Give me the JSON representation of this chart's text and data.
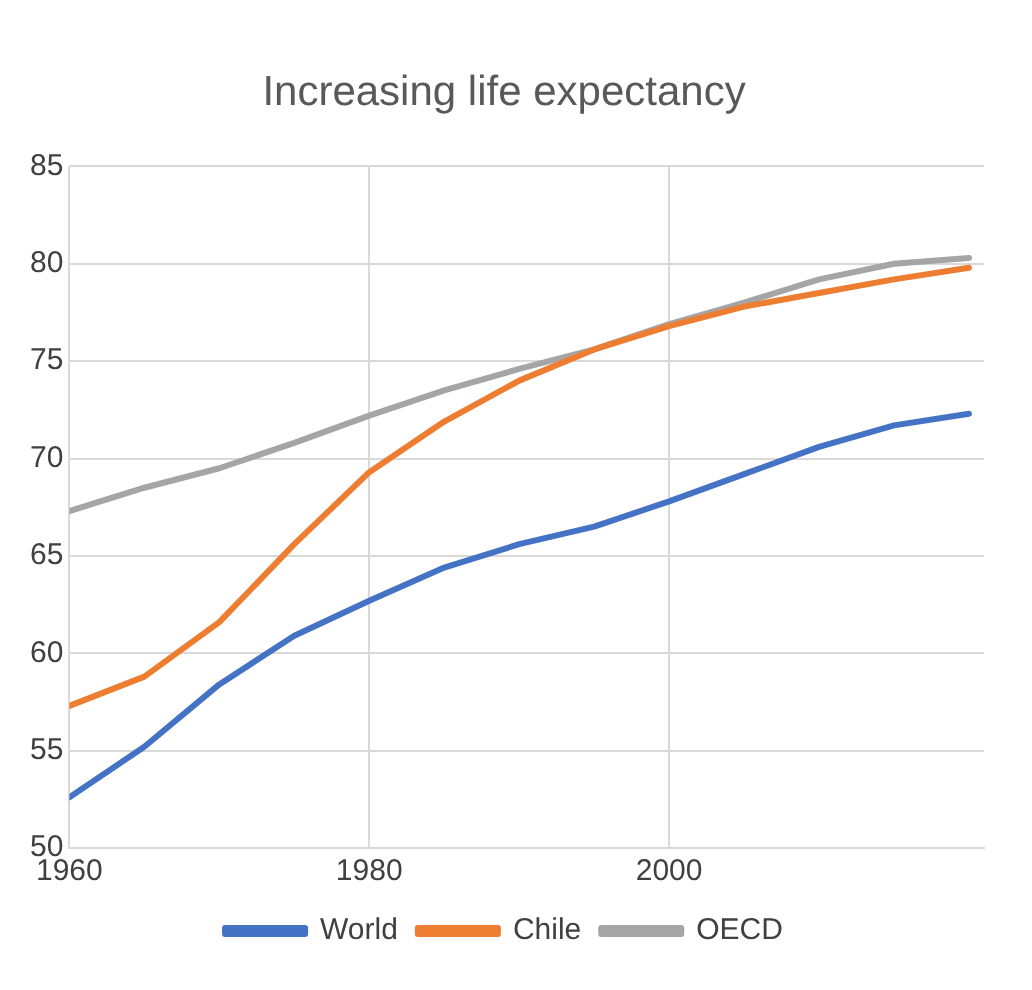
{
  "chart_data": {
    "type": "line",
    "title": "Increasing life expectancy",
    "x": [
      1960,
      1965,
      1970,
      1975,
      1980,
      1985,
      1990,
      1995,
      2000,
      2005,
      2010,
      2015,
      2020
    ],
    "series": [
      {
        "name": "World",
        "color": "#4472c4",
        "values": [
          52.6,
          55.2,
          58.4,
          60.9,
          62.7,
          64.4,
          65.6,
          66.5,
          67.8,
          69.2,
          70.6,
          71.7,
          72.3
        ]
      },
      {
        "name": "Chile",
        "color": "#ed7d31",
        "values": [
          57.3,
          58.8,
          61.6,
          65.6,
          69.3,
          71.9,
          74.0,
          75.6,
          76.8,
          77.8,
          78.5,
          79.2,
          79.8
        ]
      },
      {
        "name": "OECD",
        "color": "#a5a5a5",
        "values": [
          67.3,
          68.5,
          69.5,
          70.8,
          72.2,
          73.5,
          74.6,
          75.6,
          76.9,
          78.0,
          79.2,
          80.0,
          80.3
        ]
      }
    ],
    "xlim": [
      1960,
      2021
    ],
    "xticks": [
      1960,
      1980,
      2000
    ],
    "ylim": [
      50,
      85
    ],
    "yticks": [
      50,
      55,
      60,
      65,
      70,
      75,
      80,
      85
    ],
    "grid": true,
    "legend": "bottom",
    "marker": "none",
    "line_style": "solid"
  }
}
